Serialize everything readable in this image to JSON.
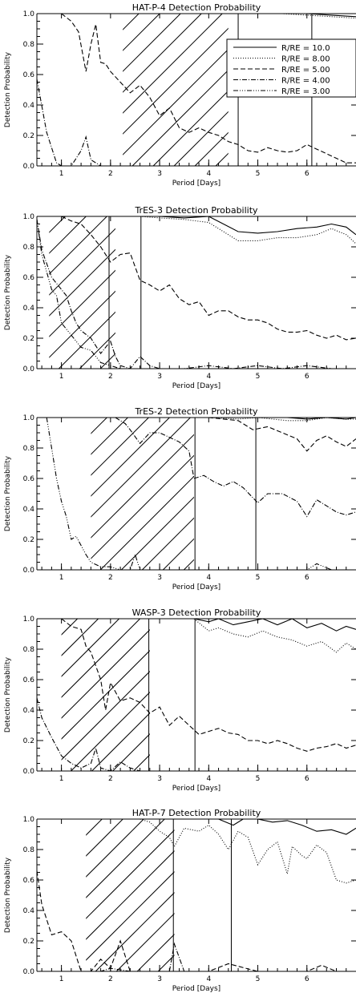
{
  "chart_data": [
    {
      "type": "line",
      "title": "HAT-P-4 Detection Probability",
      "xlabel": "Period [Days]",
      "ylabel": "Detection Probability",
      "xlim": [
        0.5,
        7.0
      ],
      "ylim": [
        0.0,
        1.0
      ],
      "x_ticks": [
        "1",
        "2",
        "3",
        "4",
        "5",
        "6"
      ],
      "y_ticks": [
        "0.0",
        "0.2",
        "0.4",
        "0.6",
        "0.8",
        "1.0"
      ],
      "legend": {
        "placement": "top-right",
        "entries": [
          {
            "label": "R/RE = 10.0",
            "style": "solid"
          },
          {
            "label": "R/RE = 8.00",
            "style": "dotted"
          },
          {
            "label": "R/RE = 5.00",
            "style": "dashed"
          },
          {
            "label": "R/RE = 4.00",
            "style": "dashdot"
          },
          {
            "label": "R/RE = 3.00",
            "style": "dashdotdotdot"
          }
        ]
      },
      "vlines": [
        4.6,
        6.1
      ],
      "hatch_x": [
        2.25,
        4.4
      ],
      "series": [
        {
          "style": "solid",
          "x": [
            4.4,
            5.0,
            5.5,
            6.0,
            6.5,
            7.0
          ],
          "values": [
            1.0,
            1.0,
            1.0,
            1.0,
            0.99,
            0.98
          ]
        },
        {
          "style": "dotted",
          "x": [
            4.4,
            5.0,
            5.5,
            6.0,
            6.5,
            7.0
          ],
          "values": [
            1.0,
            1.0,
            1.0,
            0.99,
            0.98,
            0.97
          ]
        },
        {
          "style": "dashed",
          "x": [
            1.0,
            1.2,
            1.35,
            1.5,
            1.6,
            1.7,
            1.8,
            1.9,
            2.0,
            2.2,
            2.4,
            2.6,
            2.8,
            3.0,
            3.2,
            3.4,
            3.6,
            3.8,
            4.0,
            4.2,
            4.4,
            4.6,
            4.8,
            5.0,
            5.2,
            5.4,
            5.6,
            5.8,
            6.0,
            6.2,
            6.4,
            6.6,
            6.8,
            7.0
          ],
          "values": [
            1.0,
            0.95,
            0.88,
            0.62,
            0.8,
            0.93,
            0.68,
            0.67,
            0.62,
            0.55,
            0.48,
            0.53,
            0.45,
            0.33,
            0.38,
            0.25,
            0.22,
            0.25,
            0.22,
            0.2,
            0.16,
            0.14,
            0.1,
            0.09,
            0.12,
            0.1,
            0.09,
            0.1,
            0.14,
            0.11,
            0.08,
            0.05,
            0.02,
            0.02
          ]
        },
        {
          "style": "dashdot",
          "x": [
            0.5,
            0.7,
            0.9,
            1.0,
            1.2,
            1.4,
            1.5,
            1.6,
            1.8,
            2.0,
            2.2
          ],
          "values": [
            0.57,
            0.22,
            0.02,
            0.0,
            0.0,
            0.1,
            0.19,
            0.04,
            0.0,
            0.0,
            0.0
          ]
        }
      ]
    },
    {
      "type": "line",
      "title": "TrES-3 Detection Probability",
      "xlabel": "Period [Days]",
      "ylabel": "Detection Probability",
      "xlim": [
        0.5,
        7.0
      ],
      "ylim": [
        0.0,
        1.0
      ],
      "x_ticks": [
        "1",
        "2",
        "3",
        "4",
        "5",
        "6"
      ],
      "y_ticks": [
        "0.0",
        "0.2",
        "0.4",
        "0.6",
        "0.8",
        "1.0"
      ],
      "vlines": [
        1.97,
        2.62
      ],
      "hatch_x": [
        0.75,
        2.1
      ],
      "series": [
        {
          "style": "solid",
          "x": [
            0.7,
            1.0,
            2.6,
            3.0,
            3.5,
            4.0,
            4.3,
            4.6,
            5.0,
            5.4,
            5.8,
            6.2,
            6.5,
            6.8,
            7.0
          ],
          "values": [
            1.0,
            1.0,
            1.0,
            1.0,
            0.99,
            1.0,
            0.95,
            0.9,
            0.89,
            0.9,
            0.92,
            0.93,
            0.95,
            0.93,
            0.88
          ]
        },
        {
          "style": "dotted",
          "x": [
            2.6,
            3.0,
            3.5,
            4.0,
            4.3,
            4.6,
            5.0,
            5.4,
            5.8,
            6.2,
            6.5,
            6.8,
            7.0
          ],
          "values": [
            1.0,
            0.99,
            0.98,
            0.96,
            0.9,
            0.84,
            0.84,
            0.86,
            0.86,
            0.88,
            0.92,
            0.88,
            0.82
          ]
        },
        {
          "style": "dashed",
          "x": [
            1.0,
            1.2,
            1.4,
            1.6,
            1.8,
            2.0,
            2.2,
            2.4,
            2.6,
            2.8,
            3.0,
            3.2,
            3.4,
            3.6,
            3.8,
            4.0,
            4.2,
            4.4,
            4.6,
            4.8,
            5.0,
            5.2,
            5.4,
            5.6,
            5.8,
            6.0,
            6.2,
            6.4,
            6.6,
            6.8,
            7.0
          ],
          "values": [
            1.0,
            0.97,
            0.95,
            0.88,
            0.8,
            0.7,
            0.75,
            0.76,
            0.58,
            0.55,
            0.51,
            0.55,
            0.46,
            0.42,
            0.44,
            0.35,
            0.38,
            0.38,
            0.34,
            0.32,
            0.32,
            0.3,
            0.26,
            0.24,
            0.24,
            0.25,
            0.22,
            0.2,
            0.22,
            0.19,
            0.2
          ]
        },
        {
          "style": "dashdot",
          "x": [
            0.5,
            0.6,
            0.8,
            1.0,
            1.1,
            1.2,
            1.3,
            1.4,
            1.6,
            1.8,
            2.0,
            2.1,
            2.2,
            2.4,
            2.6,
            2.8,
            3.0,
            3.5,
            4.0,
            4.5,
            5.0,
            5.5,
            6.0,
            6.5,
            7.0
          ],
          "values": [
            0.98,
            0.78,
            0.6,
            0.52,
            0.48,
            0.38,
            0.3,
            0.25,
            0.2,
            0.1,
            0.18,
            0.08,
            0.02,
            0.0,
            0.08,
            0.02,
            0.0,
            0.0,
            0.02,
            0.0,
            0.02,
            0.0,
            0.02,
            0.0,
            0.0
          ]
        },
        {
          "style": "dashdotdotdot",
          "x": [
            0.5,
            0.6,
            0.8,
            0.9,
            1.0,
            1.2,
            1.4,
            1.6,
            1.8,
            2.0,
            2.2
          ],
          "values": [
            0.98,
            0.75,
            0.52,
            0.48,
            0.3,
            0.22,
            0.14,
            0.12,
            0.04,
            0.02,
            0.0
          ]
        }
      ]
    },
    {
      "type": "line",
      "title": "TrES-2 Detection Probability",
      "xlabel": "Period [Days]",
      "ylabel": "Detection Probability",
      "xlim": [
        0.5,
        7.0
      ],
      "ylim": [
        0.0,
        1.0
      ],
      "x_ticks": [
        "1",
        "2",
        "3",
        "4",
        "5",
        "6"
      ],
      "y_ticks": [
        "0.0",
        "0.2",
        "0.4",
        "0.6",
        "0.8",
        "1.0"
      ],
      "vlines": [
        3.72,
        4.96
      ],
      "hatch_x": [
        1.6,
        3.7
      ],
      "series": [
        {
          "style": "solid",
          "x": [
            1.8,
            2.4,
            3.0,
            3.6,
            4.0,
            4.6,
            5.0,
            5.6,
            6.0,
            6.4,
            6.8,
            7.0
          ],
          "values": [
            1.0,
            1.0,
            1.0,
            1.0,
            1.0,
            1.0,
            1.0,
            1.0,
            0.99,
            1.0,
            0.99,
            1.0
          ]
        },
        {
          "style": "dotted",
          "x": [
            1.8,
            2.4,
            3.0,
            3.6,
            4.0,
            4.6,
            5.0,
            5.6,
            6.0,
            6.4,
            6.8,
            7.0
          ],
          "values": [
            1.0,
            1.0,
            1.0,
            1.0,
            1.0,
            0.99,
            1.0,
            0.98,
            0.98,
            1.0,
            0.99,
            0.99
          ]
        },
        {
          "style": "dashed",
          "x": [
            3.7,
            4.0,
            4.3,
            4.6,
            4.9,
            5.2,
            5.5,
            5.8,
            6.0,
            6.2,
            6.4,
            6.6,
            6.8,
            7.0
          ],
          "values": [
            1.0,
            1.0,
            0.99,
            0.98,
            0.92,
            0.94,
            0.9,
            0.86,
            0.78,
            0.85,
            0.88,
            0.84,
            0.81,
            0.86
          ]
        },
        {
          "style": "dashdot",
          "x": [
            2.1,
            2.3,
            2.4,
            2.6,
            2.8,
            3.0,
            3.2,
            3.4,
            3.6,
            3.7,
            3.9,
            4.1,
            4.3,
            4.5,
            4.7,
            5.0,
            5.2,
            5.5,
            5.8,
            6.0,
            6.2,
            6.4,
            6.6,
            6.8,
            7.0
          ],
          "values": [
            1.0,
            0.96,
            0.92,
            0.83,
            0.9,
            0.9,
            0.87,
            0.84,
            0.78,
            0.6,
            0.62,
            0.58,
            0.55,
            0.58,
            0.54,
            0.44,
            0.5,
            0.5,
            0.45,
            0.35,
            0.46,
            0.42,
            0.38,
            0.36,
            0.38
          ]
        },
        {
          "style": "dashdotdotdot",
          "x": [
            0.7,
            0.8,
            0.9,
            1.0,
            1.1,
            1.2,
            1.3,
            1.5,
            1.6,
            1.8,
            2.0,
            2.2,
            2.4,
            2.5,
            2.6,
            2.8,
            3.2,
            3.6,
            4.0,
            5.0,
            6.0,
            6.2,
            6.5,
            7.0
          ],
          "values": [
            1.0,
            0.8,
            0.6,
            0.45,
            0.35,
            0.2,
            0.22,
            0.1,
            0.05,
            0.02,
            0.02,
            0.0,
            0.0,
            0.1,
            0.0,
            0.0,
            0.0,
            0.0,
            0.0,
            0.0,
            0.0,
            0.04,
            0.0,
            0.0
          ]
        }
      ]
    },
    {
      "type": "line",
      "title": "WASP-3 Detection Probability",
      "xlabel": "Period [Days]",
      "ylabel": "Detection Probability",
      "xlim": [
        0.5,
        7.0
      ],
      "ylim": [
        0.0,
        1.0
      ],
      "x_ticks": [
        "1",
        "2",
        "3",
        "4",
        "5",
        "6"
      ],
      "y_ticks": [
        "0.0",
        "0.2",
        "0.4",
        "0.6",
        "0.8",
        "1.0"
      ],
      "vlines": [
        2.78,
        3.72
      ],
      "hatch_x": [
        1.0,
        2.8
      ],
      "series": [
        {
          "style": "solid",
          "x": [
            3.7,
            4.0,
            4.2,
            4.5,
            4.8,
            5.1,
            5.4,
            5.7,
            6.0,
            6.3,
            6.6,
            6.8,
            7.0
          ],
          "values": [
            1.0,
            0.98,
            1.0,
            0.96,
            0.98,
            1.0,
            0.96,
            1.0,
            0.94,
            0.97,
            0.92,
            0.95,
            0.93
          ]
        },
        {
          "style": "dotted",
          "x": [
            3.7,
            4.0,
            4.2,
            4.5,
            4.8,
            5.1,
            5.4,
            5.7,
            6.0,
            6.3,
            6.6,
            6.8,
            7.0
          ],
          "values": [
            1.0,
            0.92,
            0.94,
            0.9,
            0.88,
            0.92,
            0.88,
            0.86,
            0.82,
            0.85,
            0.78,
            0.84,
            0.8
          ]
        },
        {
          "style": "dashed",
          "x": [
            1.0,
            1.2,
            1.4,
            1.5,
            1.6,
            1.8,
            1.9,
            2.0,
            2.2,
            2.4,
            2.6,
            2.8,
            3.0,
            3.2,
            3.4,
            3.6,
            3.8,
            4.0,
            4.2,
            4.4,
            4.6,
            4.8,
            5.0,
            5.2,
            5.4,
            5.6,
            5.8,
            6.0,
            6.2,
            6.4,
            6.6,
            6.8,
            7.0
          ],
          "values": [
            1.0,
            0.95,
            0.93,
            0.82,
            0.78,
            0.6,
            0.4,
            0.58,
            0.46,
            0.48,
            0.45,
            0.38,
            0.42,
            0.3,
            0.36,
            0.3,
            0.24,
            0.26,
            0.28,
            0.25,
            0.24,
            0.2,
            0.2,
            0.18,
            0.2,
            0.18,
            0.15,
            0.13,
            0.15,
            0.16,
            0.18,
            0.15,
            0.17
          ]
        },
        {
          "style": "dashdot",
          "x": [
            0.5,
            0.6,
            0.8,
            1.0,
            1.2,
            1.4,
            1.6,
            1.7,
            1.8,
            2.0,
            2.2,
            2.4,
            2.6,
            3.0,
            3.5,
            4.0,
            4.5,
            5.0,
            6.0,
            7.0
          ],
          "values": [
            0.48,
            0.35,
            0.22,
            0.1,
            0.05,
            0.02,
            0.05,
            0.15,
            0.02,
            0.0,
            0.06,
            0.02,
            0.0,
            0.0,
            0.0,
            0.0,
            0.0,
            0.0,
            0.0,
            0.0
          ]
        }
      ]
    },
    {
      "type": "line",
      "title": "HAT-P-7 Detection Probability",
      "xlabel": "Period [Days]",
      "ylabel": "Detection Probability",
      "xlim": [
        0.5,
        7.0
      ],
      "ylim": [
        0.0,
        1.0
      ],
      "x_ticks": [
        "1",
        "2",
        "3",
        "4",
        "5",
        "6"
      ],
      "y_ticks": [
        "0.0",
        "0.2",
        "0.4",
        "0.6",
        "0.8",
        "1.0"
      ],
      "vlines": [
        3.28,
        4.46
      ],
      "hatch_x": [
        1.5,
        3.3
      ],
      "series": [
        {
          "style": "solid",
          "x": [
            3.3,
            3.6,
            3.9,
            4.2,
            4.5,
            4.7,
            5.0,
            5.3,
            5.6,
            5.9,
            6.2,
            6.5,
            6.8,
            7.0
          ],
          "values": [
            1.0,
            1.0,
            1.0,
            1.0,
            0.96,
            1.0,
            1.0,
            0.98,
            0.99,
            0.96,
            0.92,
            0.93,
            0.9,
            0.94
          ]
        },
        {
          "style": "dotted",
          "x": [
            2.6,
            2.8,
            3.0,
            3.2,
            3.3,
            3.5,
            3.8,
            4.0,
            4.2,
            4.4,
            4.6,
            4.8,
            5.0,
            5.2,
            5.4,
            5.6,
            5.7,
            5.9,
            6.0,
            6.2,
            6.4,
            6.6,
            6.8,
            7.0
          ],
          "values": [
            1.0,
            0.98,
            0.92,
            0.88,
            0.82,
            0.94,
            0.92,
            0.96,
            0.9,
            0.8,
            0.92,
            0.88,
            0.7,
            0.8,
            0.85,
            0.64,
            0.82,
            0.76,
            0.74,
            0.83,
            0.78,
            0.6,
            0.58,
            0.6
          ]
        },
        {
          "style": "dashed",
          "x": [
            0.5,
            0.6,
            0.8,
            1.0,
            1.2,
            1.4,
            1.6,
            1.8,
            2.0,
            2.2,
            2.4,
            2.6,
            3.0,
            3.5,
            4.0,
            4.4,
            5.0,
            6.0,
            6.3,
            6.6,
            7.0
          ],
          "values": [
            0.66,
            0.44,
            0.24,
            0.26,
            0.2,
            0.0,
            0.0,
            0.08,
            0.02,
            0.2,
            0.0,
            0.0,
            0.0,
            0.0,
            0.0,
            0.05,
            0.0,
            0.0,
            0.04,
            0.0,
            0.0
          ]
        },
        {
          "style": "dashdot",
          "x": [
            1.6,
            1.8,
            2.0,
            2.4,
            2.8,
            3.2,
            3.3,
            3.5,
            4.0,
            5.0,
            6.0,
            7.0
          ],
          "values": [
            0.0,
            0.0,
            0.02,
            0.0,
            0.0,
            0.0,
            0.18,
            0.0,
            0.0,
            0.0,
            0.0,
            0.0
          ]
        }
      ]
    }
  ]
}
